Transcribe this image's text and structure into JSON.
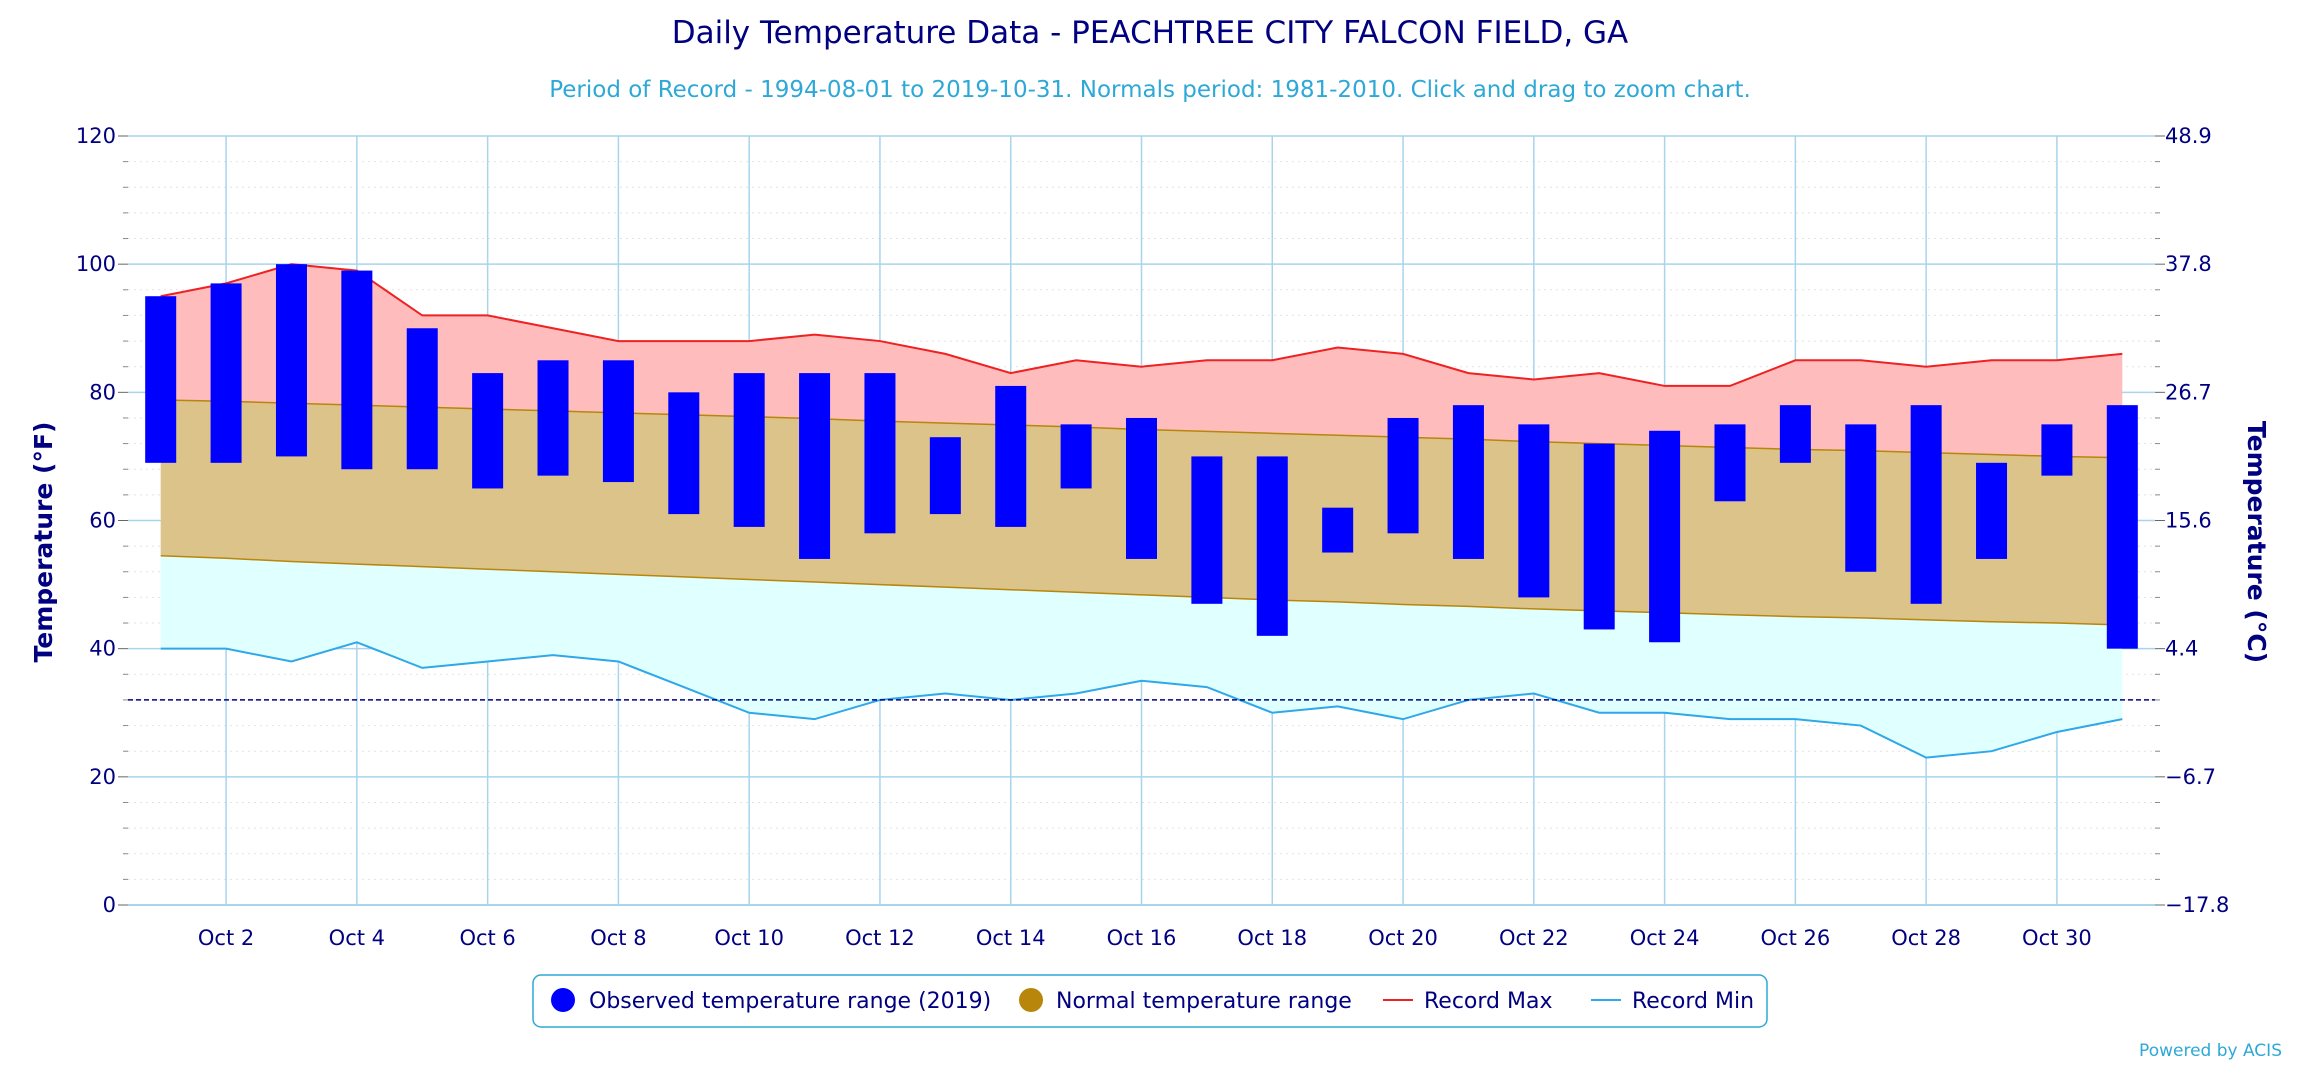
{
  "chart_data": {
    "type": "bar",
    "title": "Daily Temperature Data - PEACHTREE CITY FALCON FIELD, GA",
    "subtitle": "Period of Record - 1994-08-01 to 2019-10-31. Normals period: 1981-2010. Click and drag to zoom chart.",
    "ylabel_left": "Temperature (°F)",
    "ylabel_right": "Temperature (°C)",
    "ylim": [
      0,
      120
    ],
    "yticks_left": [
      "0",
      "20",
      "40",
      "60",
      "80",
      "100",
      "120"
    ],
    "yticks_right": [
      "−17.8",
      "−6.7",
      "4.4",
      "15.6",
      "26.7",
      "37.8",
      "48.9"
    ],
    "xlim": [
      0.5,
      31.5
    ],
    "x_tick_labels": [
      "Oct 2",
      "Oct 4",
      "Oct 6",
      "Oct 8",
      "Oct 10",
      "Oct 12",
      "Oct 14",
      "Oct 16",
      "Oct 18",
      "Oct 20",
      "Oct 22",
      "Oct 24",
      "Oct 26",
      "Oct 28",
      "Oct 30"
    ],
    "x_tick_days": [
      2,
      4,
      6,
      8,
      10,
      12,
      14,
      16,
      18,
      20,
      22,
      24,
      26,
      28,
      30
    ],
    "days": [
      1,
      2,
      3,
      4,
      5,
      6,
      7,
      8,
      9,
      10,
      11,
      12,
      13,
      14,
      15,
      16,
      17,
      18,
      19,
      20,
      21,
      22,
      23,
      24,
      25,
      26,
      27,
      28,
      29,
      30,
      31
    ],
    "freezing_line": 32,
    "grid": true,
    "legend_position": "bottom",
    "colors": {
      "observed": "#0000ff",
      "normal_fill": "#dbc38a",
      "normal_line": "#b8860b",
      "record_max_line": "#ee2222",
      "record_max_fill": "#ffbcbc",
      "record_min_line": "#2ea8e8",
      "record_min_fill": "#e0ffff",
      "grid": "#a8d4ec",
      "freezing": "#000080"
    },
    "series": [
      {
        "name": "Observed temperature range (2019)",
        "low": [
          69,
          69,
          70,
          68,
          68,
          65,
          67,
          66,
          61,
          59,
          54,
          58,
          61,
          59,
          65,
          54,
          47,
          42,
          55,
          58,
          54,
          48,
          43,
          41,
          63,
          69,
          52,
          47,
          54,
          67,
          40
        ],
        "high": [
          95,
          97,
          100,
          99,
          90,
          83,
          85,
          85,
          80,
          83,
          83,
          83,
          73,
          81,
          75,
          76,
          70,
          70,
          62,
          76,
          78,
          75,
          72,
          74,
          75,
          78,
          75,
          78,
          69,
          75,
          78
        ]
      },
      {
        "name": "Normal temperature range",
        "low": [
          54.5,
          54.1,
          53.6,
          53.2,
          52.8,
          52.4,
          52.0,
          51.6,
          51.2,
          50.8,
          50.4,
          50.0,
          49.6,
          49.2,
          48.8,
          48.4,
          48.0,
          47.6,
          47.3,
          46.9,
          46.6,
          46.2,
          45.9,
          45.6,
          45.3,
          45.0,
          44.8,
          44.5,
          44.2,
          44.0,
          43.7
        ],
        "high": [
          78.8,
          78.6,
          78.3,
          78.0,
          77.7,
          77.4,
          77.1,
          76.8,
          76.5,
          76.2,
          75.9,
          75.5,
          75.2,
          74.9,
          74.6,
          74.2,
          73.9,
          73.6,
          73.3,
          73.0,
          72.7,
          72.3,
          72.0,
          71.7,
          71.4,
          71.1,
          70.9,
          70.6,
          70.3,
          70.0,
          69.8
        ]
      },
      {
        "name": "Record Max",
        "values": [
          95,
          97,
          100,
          99,
          92,
          92,
          90,
          88,
          88,
          88,
          89,
          88,
          86,
          83,
          85,
          84,
          85,
          85,
          87,
          86,
          83,
          82,
          83,
          81,
          81,
          85,
          85,
          84,
          85,
          85,
          86
        ]
      },
      {
        "name": "Record Min",
        "values": [
          40,
          40,
          38,
          41,
          37,
          38,
          39,
          38,
          34,
          30,
          29,
          32,
          33,
          32,
          33,
          35,
          34,
          30,
          31,
          29,
          32,
          33,
          30,
          30,
          29,
          29,
          28,
          23,
          24,
          27,
          29
        ]
      }
    ],
    "credit": "Powered by ACIS"
  }
}
